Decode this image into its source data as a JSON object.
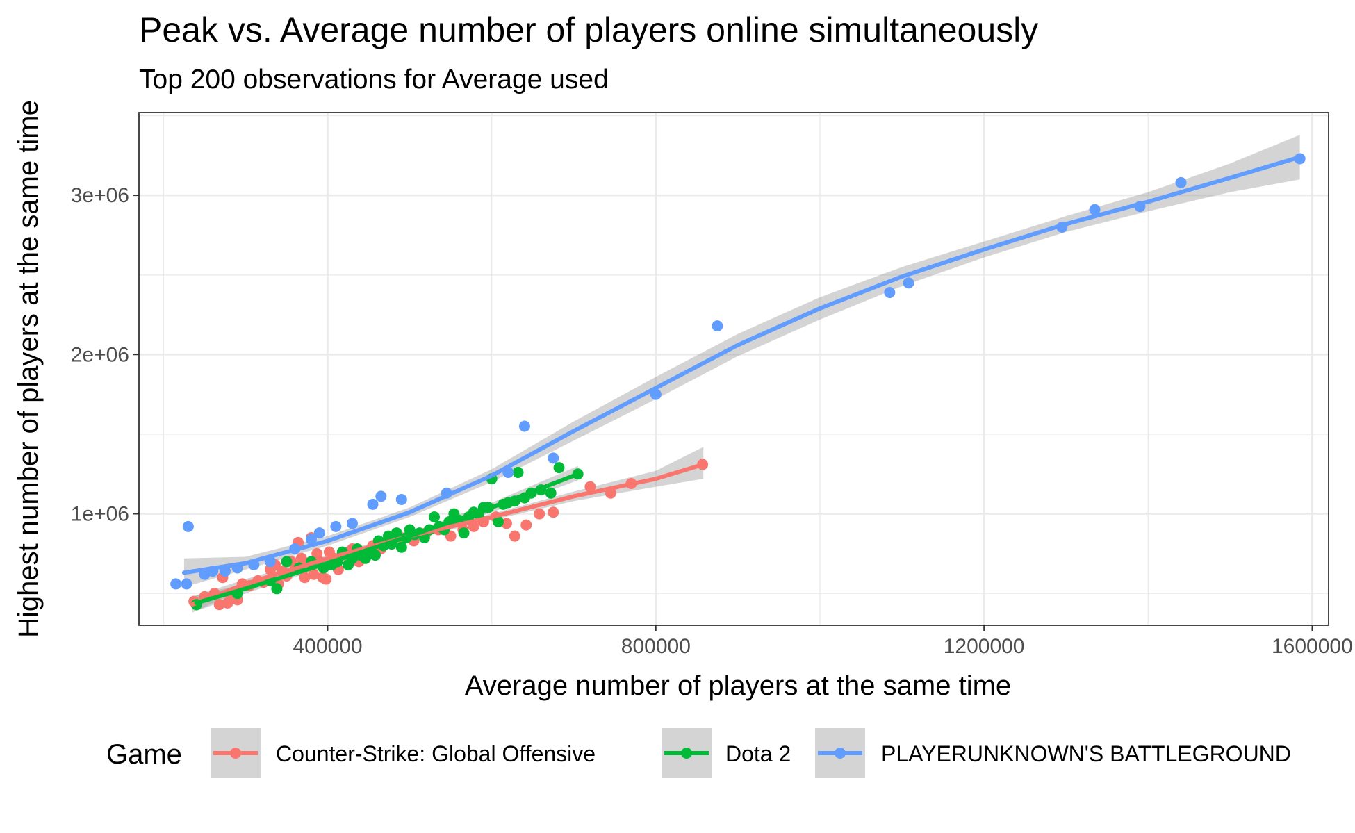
{
  "chart_data": {
    "type": "scatter",
    "title": "Peak vs. Average number of players online simultaneously",
    "subtitle": "Top 200 observations for Average used",
    "xlabel": "Average number of players at the same time",
    "ylabel": "Highest number of players at the same time",
    "xlim": [
      170000,
      1620000
    ],
    "ylim": [
      300000,
      3520000
    ],
    "x_ticks": [
      400000,
      800000,
      1200000,
      1600000
    ],
    "x_tick_labels": [
      "400000",
      "800000",
      "1200000",
      "1600000"
    ],
    "y_ticks": [
      1000000,
      2000000,
      3000000
    ],
    "y_tick_labels": [
      "1e+06",
      "2e+06",
      "3e+06"
    ],
    "grid": true,
    "legend_position": "bottom",
    "legend_title": "Game",
    "series": [
      {
        "name": "Counter-Strike: Global Offensive",
        "color": "#F8766D",
        "points": [
          [
            237000,
            450000
          ],
          [
            250000,
            480000
          ],
          [
            262000,
            500000
          ],
          [
            268000,
            430000
          ],
          [
            272000,
            600000
          ],
          [
            278000,
            440000
          ],
          [
            283000,
            470000
          ],
          [
            290000,
            460000
          ],
          [
            296000,
            560000
          ],
          [
            305000,
            550000
          ],
          [
            315000,
            580000
          ],
          [
            322000,
            570000
          ],
          [
            330000,
            650000
          ],
          [
            336000,
            680000
          ],
          [
            340000,
            560000
          ],
          [
            345000,
            640000
          ],
          [
            350000,
            610000
          ],
          [
            356000,
            700000
          ],
          [
            360000,
            650000
          ],
          [
            364000,
            820000
          ],
          [
            368000,
            720000
          ],
          [
            372000,
            600000
          ],
          [
            376000,
            690000
          ],
          [
            380000,
            850000
          ],
          [
            383000,
            620000
          ],
          [
            387000,
            750000
          ],
          [
            390000,
            700000
          ],
          [
            394000,
            600000
          ],
          [
            398000,
            590000
          ],
          [
            402000,
            760000
          ],
          [
            408000,
            720000
          ],
          [
            413000,
            650000
          ],
          [
            418000,
            740000
          ],
          [
            425000,
            760000
          ],
          [
            430000,
            780000
          ],
          [
            438000,
            700000
          ],
          [
            445000,
            760000
          ],
          [
            455000,
            800000
          ],
          [
            465000,
            780000
          ],
          [
            475000,
            820000
          ],
          [
            490000,
            850000
          ],
          [
            505000,
            830000
          ],
          [
            520000,
            880000
          ],
          [
            535000,
            900000
          ],
          [
            550000,
            860000
          ],
          [
            565000,
            900000
          ],
          [
            578000,
            920000
          ],
          [
            590000,
            950000
          ],
          [
            605000,
            980000
          ],
          [
            618000,
            940000
          ],
          [
            628000,
            860000
          ],
          [
            642000,
            930000
          ],
          [
            658000,
            1000000
          ],
          [
            675000,
            1010000
          ],
          [
            720000,
            1170000
          ],
          [
            745000,
            1130000
          ],
          [
            770000,
            1190000
          ],
          [
            857000,
            1310000
          ]
        ],
        "fit": [
          [
            235000,
            430000
          ],
          [
            300000,
            560000
          ],
          [
            400000,
            720000
          ],
          [
            500000,
            860000
          ],
          [
            600000,
            980000
          ],
          [
            700000,
            1110000
          ],
          [
            800000,
            1220000
          ],
          [
            858000,
            1310000
          ]
        ],
        "band": [
          [
            235000,
            380000,
            480000
          ],
          [
            300000,
            530000,
            590000
          ],
          [
            400000,
            700000,
            740000
          ],
          [
            500000,
            840000,
            880000
          ],
          [
            600000,
            960000,
            1000000
          ],
          [
            700000,
            1080000,
            1140000
          ],
          [
            800000,
            1170000,
            1270000
          ],
          [
            858000,
            1220000,
            1420000
          ]
        ]
      },
      {
        "name": "Dota 2",
        "color": "#00BA38",
        "points": [
          [
            240000,
            430000
          ],
          [
            290000,
            500000
          ],
          [
            330000,
            580000
          ],
          [
            338000,
            530000
          ],
          [
            350000,
            700000
          ],
          [
            365000,
            660000
          ],
          [
            380000,
            700000
          ],
          [
            395000,
            660000
          ],
          [
            405000,
            680000
          ],
          [
            412000,
            700000
          ],
          [
            418000,
            760000
          ],
          [
            425000,
            680000
          ],
          [
            430000,
            720000
          ],
          [
            436000,
            780000
          ],
          [
            440000,
            740000
          ],
          [
            446000,
            720000
          ],
          [
            452000,
            760000
          ],
          [
            458000,
            740000
          ],
          [
            462000,
            830000
          ],
          [
            468000,
            800000
          ],
          [
            474000,
            860000
          ],
          [
            478000,
            810000
          ],
          [
            484000,
            880000
          ],
          [
            490000,
            790000
          ],
          [
            496000,
            850000
          ],
          [
            500000,
            900000
          ],
          [
            506000,
            870000
          ],
          [
            512000,
            880000
          ],
          [
            518000,
            850000
          ],
          [
            524000,
            900000
          ],
          [
            530000,
            980000
          ],
          [
            536000,
            920000
          ],
          [
            542000,
            900000
          ],
          [
            548000,
            950000
          ],
          [
            554000,
            1000000
          ],
          [
            560000,
            960000
          ],
          [
            566000,
            880000
          ],
          [
            572000,
            980000
          ],
          [
            578000,
            1010000
          ],
          [
            584000,
            1000000
          ],
          [
            590000,
            1040000
          ],
          [
            596000,
            1040000
          ],
          [
            600000,
            1220000
          ],
          [
            608000,
            950000
          ],
          [
            614000,
            1060000
          ],
          [
            620000,
            1070000
          ],
          [
            628000,
            1080000
          ],
          [
            632000,
            1260000
          ],
          [
            640000,
            1100000
          ],
          [
            648000,
            1130000
          ],
          [
            660000,
            1150000
          ],
          [
            672000,
            1130000
          ],
          [
            682000,
            1290000
          ],
          [
            705000,
            1250000
          ]
        ],
        "fit": [
          [
            240000,
            440000
          ],
          [
            300000,
            530000
          ],
          [
            400000,
            690000
          ],
          [
            500000,
            860000
          ],
          [
            600000,
            1040000
          ],
          [
            705000,
            1250000
          ]
        ],
        "band": [
          [
            240000,
            390000,
            490000
          ],
          [
            300000,
            500000,
            560000
          ],
          [
            400000,
            670000,
            710000
          ],
          [
            500000,
            840000,
            880000
          ],
          [
            600000,
            1010000,
            1070000
          ],
          [
            705000,
            1210000,
            1300000
          ]
        ]
      },
      {
        "name": "PLAYERUNKNOWN'S BATTLEGROUND",
        "color": "#619CFF",
        "points": [
          [
            215000,
            560000
          ],
          [
            228000,
            560000
          ],
          [
            230000,
            920000
          ],
          [
            250000,
            620000
          ],
          [
            260000,
            640000
          ],
          [
            275000,
            640000
          ],
          [
            290000,
            660000
          ],
          [
            310000,
            680000
          ],
          [
            330000,
            700000
          ],
          [
            360000,
            780000
          ],
          [
            380000,
            840000
          ],
          [
            390000,
            880000
          ],
          [
            410000,
            920000
          ],
          [
            430000,
            940000
          ],
          [
            455000,
            1060000
          ],
          [
            465000,
            1110000
          ],
          [
            490000,
            1090000
          ],
          [
            545000,
            1130000
          ],
          [
            620000,
            1260000
          ],
          [
            640000,
            1550000
          ],
          [
            675000,
            1350000
          ],
          [
            800000,
            1750000
          ],
          [
            875000,
            2180000
          ],
          [
            1085000,
            2390000
          ],
          [
            1108000,
            2450000
          ],
          [
            1295000,
            2800000
          ],
          [
            1335000,
            2910000
          ],
          [
            1390000,
            2930000
          ],
          [
            1440000,
            3080000
          ],
          [
            1585000,
            3230000
          ]
        ],
        "fit": [
          [
            225000,
            630000
          ],
          [
            300000,
            690000
          ],
          [
            400000,
            830000
          ],
          [
            500000,
            1010000
          ],
          [
            600000,
            1240000
          ],
          [
            700000,
            1520000
          ],
          [
            800000,
            1790000
          ],
          [
            900000,
            2060000
          ],
          [
            1000000,
            2290000
          ],
          [
            1100000,
            2490000
          ],
          [
            1200000,
            2660000
          ],
          [
            1300000,
            2820000
          ],
          [
            1400000,
            2960000
          ],
          [
            1500000,
            3110000
          ],
          [
            1585000,
            3240000
          ]
        ],
        "band": [
          [
            225000,
            540000,
            720000
          ],
          [
            300000,
            650000,
            730000
          ],
          [
            400000,
            800000,
            860000
          ],
          [
            500000,
            980000,
            1040000
          ],
          [
            600000,
            1200000,
            1280000
          ],
          [
            700000,
            1460000,
            1580000
          ],
          [
            800000,
            1720000,
            1860000
          ],
          [
            900000,
            1990000,
            2130000
          ],
          [
            1000000,
            2220000,
            2360000
          ],
          [
            1100000,
            2430000,
            2550000
          ],
          [
            1200000,
            2610000,
            2710000
          ],
          [
            1300000,
            2770000,
            2870000
          ],
          [
            1400000,
            2900000,
            3020000
          ],
          [
            1500000,
            3020000,
            3200000
          ],
          [
            1585000,
            3100000,
            3380000
          ]
        ]
      }
    ]
  }
}
